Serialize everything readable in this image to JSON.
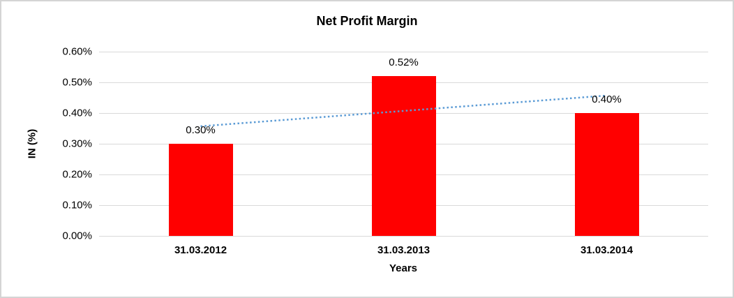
{
  "frame": {
    "border_color": "#d4d4d4",
    "background_color": "#ffffff"
  },
  "chart_data": {
    "type": "bar",
    "title": "Net Profit Margin",
    "xlabel": "Years",
    "ylabel": "IN (%)",
    "categories": [
      "31.03.2012",
      "31.03.2013",
      "31.03.2014"
    ],
    "values": [
      0.3,
      0.52,
      0.4
    ],
    "data_labels": [
      "0.30%",
      "0.52%",
      "0.40%"
    ],
    "y_ticks": [
      "0.60%",
      "0.50%",
      "0.40%",
      "0.30%",
      "0.20%",
      "0.10%",
      "0.00%"
    ],
    "ylim": [
      0,
      0.6
    ],
    "y_step": 0.1,
    "grid": true,
    "legend_position": "none",
    "bar_color": "#ff0000",
    "gridline_color": "#d9d9d9",
    "text_color": "#000000",
    "trendline": {
      "style": "dotted",
      "color": "#5b9bd5",
      "start_value": 0.357,
      "end_value": 0.457
    }
  }
}
